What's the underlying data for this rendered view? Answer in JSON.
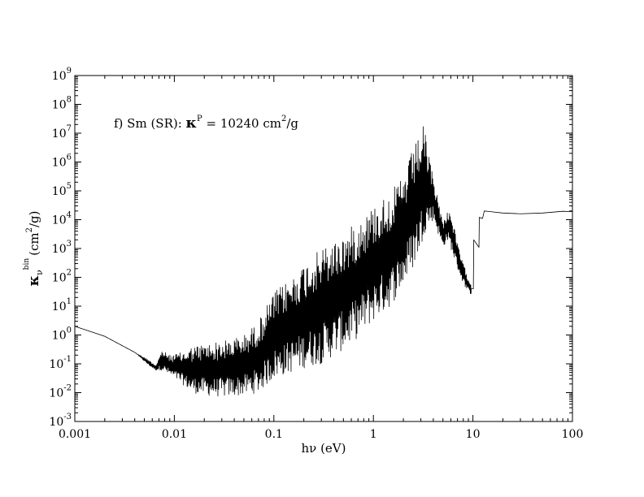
{
  "chart_data": {
    "type": "line",
    "title": "",
    "annotation": {
      "prefix": "f) Sm (SR): ",
      "kappa": "κ",
      "kappa_sup": "P",
      "value_text": " = 10240 cm",
      "unit_sup": "2",
      "unit_tail": "/g"
    },
    "xlabel": "hν (eV)",
    "ylabel": {
      "kappa": "κ",
      "sub": "ν",
      "sup": "bin",
      "unit": "(cm",
      "unit_sup": "2",
      "unit_tail": "/g)"
    },
    "x_scale": "log",
    "y_scale": "log",
    "xlim": [
      0.001,
      100
    ],
    "ylim": [
      0.001,
      1000000000
    ],
    "x_ticks": [
      {
        "value": 0.001,
        "label": "0.001"
      },
      {
        "value": 0.01,
        "label": "0.01"
      },
      {
        "value": 0.1,
        "label": "0.1"
      },
      {
        "value": 1,
        "label": "1"
      },
      {
        "value": 10,
        "label": "10"
      },
      {
        "value": 100,
        "label": "100"
      }
    ],
    "y_ticks": [
      {
        "value": 0.001,
        "base": "10",
        "exp": "-3"
      },
      {
        "value": 0.01,
        "base": "10",
        "exp": "-2"
      },
      {
        "value": 0.1,
        "base": "10",
        "exp": "-1"
      },
      {
        "value": 1,
        "base": "10",
        "exp": "0"
      },
      {
        "value": 10,
        "base": "10",
        "exp": "1"
      },
      {
        "value": 100,
        "base": "10",
        "exp": "2"
      },
      {
        "value": 1000,
        "base": "10",
        "exp": "3"
      },
      {
        "value": 10000,
        "base": "10",
        "exp": "4"
      },
      {
        "value": 100000,
        "base": "10",
        "exp": "5"
      },
      {
        "value": 1000000,
        "base": "10",
        "exp": "6"
      },
      {
        "value": 10000000,
        "base": "10",
        "exp": "7"
      },
      {
        "value": 100000000,
        "base": "10",
        "exp": "8"
      },
      {
        "value": 1000000000,
        "base": "10",
        "exp": "9"
      }
    ],
    "grid": false,
    "legend": "none",
    "line_color": "#000000",
    "series": [
      {
        "name": "",
        "envelope": {
          "note": "upper and lower bounds of the rapidly oscillating opacity band",
          "x": [
            0.001,
            0.002,
            0.004,
            0.0055,
            0.0065,
            0.0075,
            0.009,
            0.012,
            0.015,
            0.02,
            0.03,
            0.05,
            0.07,
            0.1,
            0.15,
            0.2,
            0.3,
            0.5,
            0.7,
            1.0,
            1.5,
            2.0,
            2.5,
            3.0,
            3.2,
            3.5,
            4.0,
            4.5,
            5.0,
            5.5,
            6.0,
            7.0,
            8.0,
            9.0,
            9.6
          ],
          "upper": [
            2.0,
            0.9,
            0.25,
            0.14,
            0.09,
            0.3,
            0.2,
            0.25,
            0.4,
            0.5,
            0.6,
            1.0,
            3.0,
            30,
            100,
            300,
            1000,
            3000,
            10000,
            30000,
            100000,
            300000,
            3000000,
            10000000,
            20000000,
            3000000,
            300000,
            50000,
            8000,
            20000,
            20000,
            1500,
            300,
            100,
            60
          ],
          "lower": [
            2.0,
            0.9,
            0.25,
            0.09,
            0.06,
            0.06,
            0.04,
            0.02,
            0.01,
            0.008,
            0.007,
            0.008,
            0.01,
            0.03,
            0.05,
            0.07,
            0.1,
            0.3,
            0.8,
            3,
            10,
            50,
            200,
            1000,
            3000,
            5000,
            10000,
            3000,
            1000,
            2000,
            1000,
            200,
            60,
            30,
            25
          ]
        },
        "tail": {
          "note": "smooth high-energy section after the band",
          "x": [
            9.6,
            10.1,
            10.2,
            11.5,
            11.6,
            12.5,
            13.0,
            15.0,
            20.0,
            30.0,
            50.0,
            80.0,
            100.0
          ],
          "y": [
            40,
            40,
            2000,
            1100,
            12000,
            11000,
            20000,
            19000,
            17000,
            16000,
            17000,
            19500,
            19000
          ]
        }
      }
    ]
  }
}
